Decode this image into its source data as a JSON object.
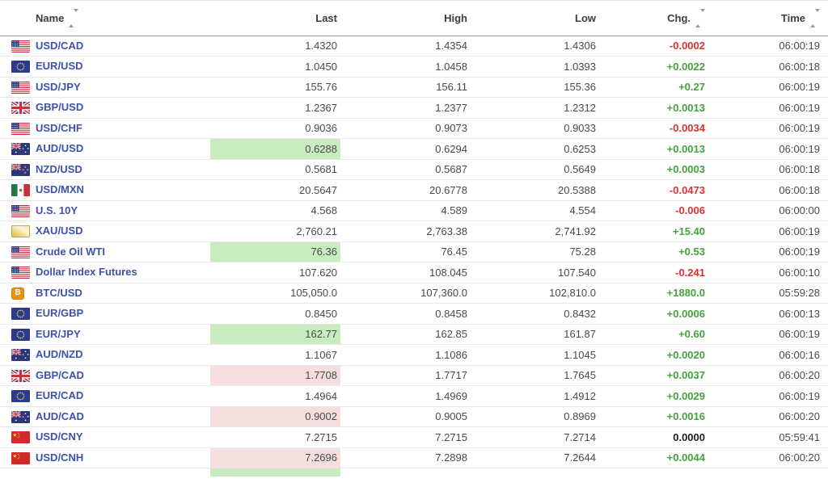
{
  "colors": {
    "link_blue": "#3C52AE",
    "chg_green": "#43A33E",
    "chg_red": "#E03030",
    "flash_green": "#C8ECC0",
    "flash_red": "#F4DEDE"
  },
  "header": {
    "columns": [
      {
        "label": "Name",
        "sortable": true
      },
      {
        "label": "Last",
        "sortable": false
      },
      {
        "label": "High",
        "sortable": false
      },
      {
        "label": "Low",
        "sortable": false
      },
      {
        "label": "Chg.",
        "sortable": true
      },
      {
        "label": "Time",
        "sortable": true
      }
    ]
  },
  "rows": [
    {
      "name": "USD/CAD",
      "flag": "us",
      "last": "1.4320",
      "high": "1.4354",
      "low": "1.4306",
      "chg": "-0.0002",
      "chg_color": "red",
      "time": "06:00:19",
      "last_flash": null
    },
    {
      "name": "EUR/USD",
      "flag": "eu",
      "last": "1.0450",
      "high": "1.0458",
      "low": "1.0393",
      "chg": "+0.0022",
      "chg_color": "green",
      "time": "06:00:18",
      "last_flash": null
    },
    {
      "name": "USD/JPY",
      "flag": "us",
      "last": "155.76",
      "high": "156.11",
      "low": "155.36",
      "chg": "+0.27",
      "chg_color": "green",
      "time": "06:00:19",
      "last_flash": null
    },
    {
      "name": "GBP/USD",
      "flag": "uk",
      "last": "1.2367",
      "high": "1.2377",
      "low": "1.2312",
      "chg": "+0.0013",
      "chg_color": "green",
      "time": "06:00:19",
      "last_flash": null
    },
    {
      "name": "USD/CHF",
      "flag": "us",
      "last": "0.9036",
      "high": "0.9073",
      "low": "0.9033",
      "chg": "-0.0034",
      "chg_color": "red",
      "time": "06:00:19",
      "last_flash": null
    },
    {
      "name": "AUD/USD",
      "flag": "au",
      "last": "0.6288",
      "high": "0.6294",
      "low": "0.6253",
      "chg": "+0.0013",
      "chg_color": "green",
      "time": "06:00:19",
      "last_flash": "green"
    },
    {
      "name": "NZD/USD",
      "flag": "nz",
      "last": "0.5681",
      "high": "0.5687",
      "low": "0.5649",
      "chg": "+0.0003",
      "chg_color": "green",
      "time": "06:00:18",
      "last_flash": null
    },
    {
      "name": "USD/MXN",
      "flag": "mx",
      "last": "20.5647",
      "high": "20.6778",
      "low": "20.5388",
      "chg": "-0.0473",
      "chg_color": "red",
      "time": "06:00:18",
      "last_flash": null
    },
    {
      "name": "U.S. 10Y",
      "flag": "us",
      "last": "4.568",
      "high": "4.589",
      "low": "4.554",
      "chg": "-0.006",
      "chg_color": "red",
      "time": "06:00:00",
      "last_flash": null
    },
    {
      "name": "XAU/USD",
      "flag": "gold",
      "last": "2,760.21",
      "high": "2,763.38",
      "low": "2,741.92",
      "chg": "+15.40",
      "chg_color": "green",
      "time": "06:00:19",
      "last_flash": null
    },
    {
      "name": "Crude Oil WTI",
      "flag": "us",
      "last": "76.36",
      "high": "76.45",
      "low": "75.28",
      "chg": "+0.53",
      "chg_color": "green",
      "time": "06:00:19",
      "last_flash": "green"
    },
    {
      "name": "Dollar Index Futures",
      "flag": "us",
      "last": "107.620",
      "high": "108.045",
      "low": "107.540",
      "chg": "-0.241",
      "chg_color": "red",
      "time": "06:00:10",
      "last_flash": null
    },
    {
      "name": "BTC/USD",
      "flag": "btc",
      "last": "105,050.0",
      "high": "107,360.0",
      "low": "102,810.0",
      "chg": "+1880.0",
      "chg_color": "green",
      "time": "05:59:28",
      "last_flash": null
    },
    {
      "name": "EUR/GBP",
      "flag": "eu",
      "last": "0.8450",
      "high": "0.8458",
      "low": "0.8432",
      "chg": "+0.0006",
      "chg_color": "green",
      "time": "06:00:13",
      "last_flash": null
    },
    {
      "name": "EUR/JPY",
      "flag": "eu",
      "last": "162.77",
      "high": "162.85",
      "low": "161.87",
      "chg": "+0.60",
      "chg_color": "green",
      "time": "06:00:19",
      "last_flash": "green"
    },
    {
      "name": "AUD/NZD",
      "flag": "au",
      "last": "1.1067",
      "high": "1.1086",
      "low": "1.1045",
      "chg": "+0.0020",
      "chg_color": "green",
      "time": "06:00:16",
      "last_flash": null
    },
    {
      "name": "GBP/CAD",
      "flag": "uk",
      "last": "1.7708",
      "high": "1.7717",
      "low": "1.7645",
      "chg": "+0.0037",
      "chg_color": "green",
      "time": "06:00:20",
      "last_flash": "red"
    },
    {
      "name": "EUR/CAD",
      "flag": "eu",
      "last": "1.4964",
      "high": "1.4969",
      "low": "1.4912",
      "chg": "+0.0029",
      "chg_color": "green",
      "time": "06:00:19",
      "last_flash": null
    },
    {
      "name": "AUD/CAD",
      "flag": "au",
      "last": "0.9002",
      "high": "0.9005",
      "low": "0.8969",
      "chg": "+0.0016",
      "chg_color": "green",
      "time": "06:00:20",
      "last_flash": "red"
    },
    {
      "name": "USD/CNY",
      "flag": "cn",
      "last": "7.2715",
      "high": "7.2715",
      "low": "7.2714",
      "chg": "0.0000",
      "chg_color": "black",
      "time": "05:59:41",
      "last_flash": null
    },
    {
      "name": "USD/CNH",
      "flag": "cn",
      "last": "7.2696",
      "high": "7.2898",
      "low": "7.2644",
      "chg": "+0.0044",
      "chg_color": "green",
      "time": "06:00:20",
      "last_flash": "red"
    }
  ],
  "cutoff_row": {
    "last_flash": "green"
  }
}
